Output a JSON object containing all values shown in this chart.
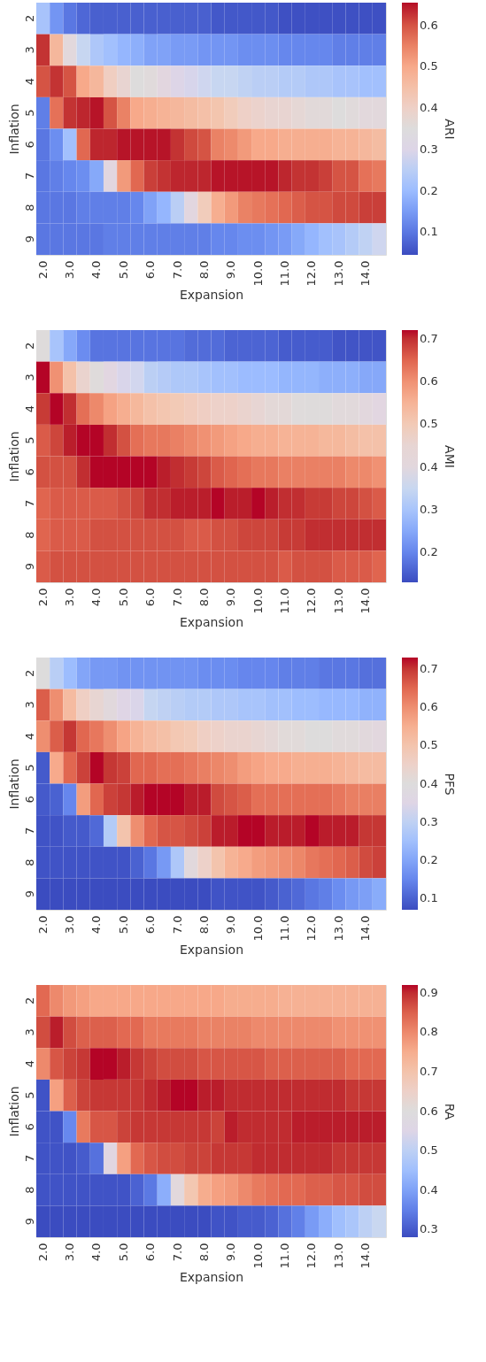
{
  "chart_data": [
    {
      "type": "heatmap",
      "xlabel": "Expansion",
      "ylabel": "Inflation",
      "clabel": "ARI",
      "categories": [
        "2.0",
        null,
        "3.0",
        null,
        "4.0",
        null,
        "5.0",
        null,
        "6.0",
        null,
        "7.0",
        null,
        "8.0",
        null,
        "9.0",
        null,
        "10.0",
        null,
        "11.0",
        null,
        "12.0",
        null,
        "13.0",
        null,
        "14.0",
        null
      ],
      "y_categories": [
        "2",
        "3",
        "4",
        "5",
        "6",
        "7",
        "8",
        "9"
      ],
      "clim": [
        0.045,
        0.655
      ],
      "cticks": [
        0.1,
        0.2,
        0.3,
        0.4,
        0.5,
        0.6
      ],
      "cells": [
        [
          0.22,
          0.14,
          0.1,
          0.08,
          0.07,
          0.07,
          0.07,
          0.07,
          0.07,
          0.07,
          0.07,
          0.07,
          0.07,
          0.06,
          0.06,
          0.06,
          0.06,
          0.06,
          0.05,
          0.05,
          0.05,
          0.05,
          0.05,
          0.05,
          0.05,
          0.05
        ],
        [
          0.63,
          0.47,
          0.33,
          0.27,
          0.23,
          0.21,
          0.19,
          0.18,
          0.16,
          0.16,
          0.15,
          0.15,
          0.14,
          0.14,
          0.14,
          0.13,
          0.13,
          0.13,
          0.12,
          0.12,
          0.12,
          0.12,
          0.11,
          0.11,
          0.11,
          0.11
        ],
        [
          0.6,
          0.63,
          0.6,
          0.5,
          0.47,
          0.41,
          0.38,
          0.35,
          0.34,
          0.32,
          0.3,
          0.29,
          0.28,
          0.27,
          0.27,
          0.26,
          0.25,
          0.25,
          0.24,
          0.24,
          0.23,
          0.23,
          0.22,
          0.22,
          0.21,
          0.21
        ],
        [
          0.11,
          0.57,
          0.63,
          0.64,
          0.65,
          0.6,
          0.55,
          0.5,
          0.49,
          0.48,
          0.47,
          0.46,
          0.45,
          0.44,
          0.42,
          0.4,
          0.39,
          0.38,
          0.38,
          0.37,
          0.36,
          0.36,
          0.35,
          0.34,
          0.33,
          0.33
        ],
        [
          0.1,
          0.13,
          0.21,
          0.58,
          0.64,
          0.64,
          0.65,
          0.65,
          0.65,
          0.65,
          0.63,
          0.61,
          0.6,
          0.55,
          0.54,
          0.52,
          0.5,
          0.5,
          0.49,
          0.49,
          0.49,
          0.49,
          0.48,
          0.48,
          0.47,
          0.46
        ],
        [
          0.1,
          0.11,
          0.12,
          0.13,
          0.17,
          0.32,
          0.52,
          0.58,
          0.62,
          0.63,
          0.64,
          0.64,
          0.64,
          0.65,
          0.65,
          0.65,
          0.65,
          0.65,
          0.64,
          0.63,
          0.63,
          0.62,
          0.6,
          0.6,
          0.57,
          0.56
        ],
        [
          0.1,
          0.1,
          0.1,
          0.11,
          0.11,
          0.11,
          0.11,
          0.12,
          0.16,
          0.19,
          0.25,
          0.32,
          0.42,
          0.49,
          0.52,
          0.55,
          0.56,
          0.57,
          0.58,
          0.59,
          0.6,
          0.6,
          0.61,
          0.61,
          0.62,
          0.62
        ],
        [
          0.1,
          0.1,
          0.1,
          0.1,
          0.1,
          0.11,
          0.11,
          0.11,
          0.11,
          0.11,
          0.11,
          0.11,
          0.11,
          0.12,
          0.12,
          0.13,
          0.13,
          0.14,
          0.15,
          0.17,
          0.19,
          0.21,
          0.22,
          0.24,
          0.26,
          0.28
        ]
      ]
    },
    {
      "type": "heatmap",
      "xlabel": "Expansion",
      "ylabel": "Inflation",
      "clabel": "AMI",
      "categories": [
        "2.0",
        null,
        "3.0",
        null,
        "4.0",
        null,
        "5.0",
        null,
        "6.0",
        null,
        "7.0",
        null,
        "8.0",
        null,
        "9.0",
        null,
        "10.0",
        null,
        "11.0",
        null,
        "12.0",
        null,
        "13.0",
        null,
        "14.0",
        null
      ],
      "y_categories": [
        "2",
        "3",
        "4",
        "5",
        "6",
        "7",
        "8",
        "9"
      ],
      "clim": [
        0.13,
        0.72
      ],
      "cticks": [
        0.2,
        0.3,
        0.4,
        0.5,
        0.6,
        0.7
      ],
      "cells": [
        [
          0.42,
          0.3,
          0.25,
          0.21,
          0.18,
          0.18,
          0.18,
          0.18,
          0.18,
          0.18,
          0.18,
          0.17,
          0.17,
          0.17,
          0.16,
          0.16,
          0.16,
          0.16,
          0.15,
          0.15,
          0.15,
          0.15,
          0.14,
          0.14,
          0.14,
          0.14
        ],
        [
          0.72,
          0.6,
          0.52,
          0.46,
          0.43,
          0.39,
          0.37,
          0.36,
          0.33,
          0.32,
          0.31,
          0.31,
          0.3,
          0.29,
          0.29,
          0.28,
          0.28,
          0.28,
          0.27,
          0.27,
          0.27,
          0.26,
          0.26,
          0.26,
          0.25,
          0.25
        ],
        [
          0.69,
          0.72,
          0.7,
          0.64,
          0.61,
          0.58,
          0.56,
          0.54,
          0.52,
          0.51,
          0.5,
          0.49,
          0.48,
          0.47,
          0.47,
          0.46,
          0.45,
          0.44,
          0.44,
          0.43,
          0.42,
          0.42,
          0.41,
          0.41,
          0.4,
          0.39
        ],
        [
          0.66,
          0.68,
          0.71,
          0.72,
          0.72,
          0.7,
          0.67,
          0.64,
          0.63,
          0.63,
          0.62,
          0.61,
          0.6,
          0.59,
          0.58,
          0.57,
          0.56,
          0.56,
          0.55,
          0.55,
          0.55,
          0.54,
          0.54,
          0.53,
          0.52,
          0.52
        ],
        [
          0.67,
          0.67,
          0.67,
          0.7,
          0.72,
          0.72,
          0.72,
          0.72,
          0.72,
          0.71,
          0.7,
          0.69,
          0.68,
          0.66,
          0.65,
          0.64,
          0.63,
          0.63,
          0.62,
          0.62,
          0.62,
          0.62,
          0.62,
          0.61,
          0.61,
          0.6
        ],
        [
          0.65,
          0.66,
          0.66,
          0.66,
          0.66,
          0.66,
          0.67,
          0.68,
          0.7,
          0.7,
          0.71,
          0.71,
          0.71,
          0.72,
          0.71,
          0.71,
          0.72,
          0.71,
          0.7,
          0.7,
          0.69,
          0.69,
          0.68,
          0.68,
          0.67,
          0.66
        ],
        [
          0.65,
          0.66,
          0.66,
          0.66,
          0.67,
          0.67,
          0.67,
          0.67,
          0.67,
          0.67,
          0.67,
          0.66,
          0.66,
          0.67,
          0.67,
          0.68,
          0.68,
          0.68,
          0.69,
          0.69,
          0.7,
          0.7,
          0.7,
          0.7,
          0.7,
          0.7
        ],
        [
          0.66,
          0.67,
          0.67,
          0.67,
          0.67,
          0.67,
          0.67,
          0.67,
          0.67,
          0.67,
          0.67,
          0.67,
          0.67,
          0.67,
          0.67,
          0.67,
          0.67,
          0.67,
          0.66,
          0.67,
          0.67,
          0.67,
          0.66,
          0.66,
          0.66,
          0.65
        ]
      ]
    },
    {
      "type": "heatmap",
      "xlabel": "Expansion",
      "ylabel": "Inflation",
      "clabel": "PFS",
      "categories": [
        "2.0",
        null,
        "3.0",
        null,
        "4.0",
        null,
        "5.0",
        null,
        "6.0",
        null,
        "7.0",
        null,
        "8.0",
        null,
        "9.0",
        null,
        "10.0",
        null,
        "11.0",
        null,
        "12.0",
        null,
        "13.0",
        null,
        "14.0",
        null
      ],
      "y_categories": [
        "2",
        "3",
        "4",
        "5",
        "6",
        "7",
        "8",
        "9"
      ],
      "clim": [
        0.07,
        0.73
      ],
      "cticks": [
        0.1,
        0.2,
        0.3,
        0.4,
        0.5,
        0.6,
        0.7
      ],
      "cells": [
        [
          0.4,
          0.29,
          0.24,
          0.2,
          0.18,
          0.18,
          0.17,
          0.17,
          0.17,
          0.17,
          0.17,
          0.17,
          0.16,
          0.16,
          0.16,
          0.15,
          0.15,
          0.15,
          0.14,
          0.14,
          0.14,
          0.13,
          0.13,
          0.13,
          0.12,
          0.12
        ],
        [
          0.66,
          0.6,
          0.52,
          0.46,
          0.43,
          0.38,
          0.35,
          0.34,
          0.31,
          0.3,
          0.29,
          0.28,
          0.28,
          0.27,
          0.27,
          0.26,
          0.26,
          0.25,
          0.25,
          0.24,
          0.24,
          0.23,
          0.23,
          0.23,
          0.22,
          0.22
        ],
        [
          0.6,
          0.66,
          0.7,
          0.65,
          0.63,
          0.6,
          0.57,
          0.54,
          0.52,
          0.51,
          0.49,
          0.48,
          0.46,
          0.45,
          0.44,
          0.44,
          0.43,
          0.42,
          0.41,
          0.41,
          0.4,
          0.4,
          0.39,
          0.39,
          0.38,
          0.37
        ],
        [
          0.09,
          0.56,
          0.65,
          0.69,
          0.73,
          0.7,
          0.69,
          0.65,
          0.65,
          0.64,
          0.64,
          0.63,
          0.62,
          0.61,
          0.6,
          0.58,
          0.57,
          0.56,
          0.56,
          0.55,
          0.55,
          0.55,
          0.54,
          0.53,
          0.52,
          0.52
        ],
        [
          0.09,
          0.1,
          0.15,
          0.58,
          0.65,
          0.69,
          0.7,
          0.72,
          0.73,
          0.73,
          0.73,
          0.72,
          0.72,
          0.68,
          0.67,
          0.66,
          0.64,
          0.64,
          0.64,
          0.64,
          0.64,
          0.64,
          0.63,
          0.62,
          0.62,
          0.62
        ],
        [
          0.08,
          0.08,
          0.09,
          0.09,
          0.11,
          0.28,
          0.5,
          0.6,
          0.65,
          0.67,
          0.67,
          0.68,
          0.69,
          0.72,
          0.72,
          0.73,
          0.73,
          0.72,
          0.72,
          0.72,
          0.73,
          0.72,
          0.72,
          0.72,
          0.7,
          0.7
        ],
        [
          0.08,
          0.08,
          0.08,
          0.08,
          0.08,
          0.08,
          0.08,
          0.1,
          0.13,
          0.18,
          0.27,
          0.38,
          0.45,
          0.5,
          0.54,
          0.56,
          0.58,
          0.59,
          0.6,
          0.61,
          0.63,
          0.64,
          0.65,
          0.66,
          0.68,
          0.69
        ],
        [
          0.07,
          0.07,
          0.07,
          0.07,
          0.07,
          0.07,
          0.07,
          0.07,
          0.07,
          0.07,
          0.07,
          0.07,
          0.07,
          0.08,
          0.08,
          0.08,
          0.08,
          0.09,
          0.1,
          0.11,
          0.13,
          0.14,
          0.16,
          0.18,
          0.19,
          0.21
        ]
      ]
    },
    {
      "type": "heatmap",
      "xlabel": "Expansion",
      "ylabel": "Inflation",
      "clabel": "RA",
      "categories": [
        "2.0",
        null,
        "3.0",
        null,
        "4.0",
        null,
        "5.0",
        null,
        "6.0",
        null,
        "7.0",
        null,
        "8.0",
        null,
        "9.0",
        null,
        "10.0",
        null,
        "11.0",
        null,
        "12.0",
        null,
        "13.0",
        null,
        "14.0",
        null
      ],
      "y_categories": [
        "2",
        "3",
        "4",
        "5",
        "6",
        "7",
        "8",
        "9"
      ],
      "clim": [
        0.28,
        0.92
      ],
      "cticks": [
        0.3,
        0.4,
        0.5,
        0.6,
        0.7,
        0.8,
        0.9
      ],
      "cells": [
        [
          0.84,
          0.8,
          0.78,
          0.77,
          0.76,
          0.76,
          0.76,
          0.76,
          0.76,
          0.76,
          0.76,
          0.76,
          0.76,
          0.76,
          0.75,
          0.75,
          0.75,
          0.75,
          0.74,
          0.74,
          0.74,
          0.74,
          0.74,
          0.74,
          0.74,
          0.74
        ],
        [
          0.87,
          0.91,
          0.87,
          0.85,
          0.85,
          0.85,
          0.84,
          0.84,
          0.82,
          0.82,
          0.82,
          0.82,
          0.81,
          0.81,
          0.81,
          0.81,
          0.8,
          0.8,
          0.8,
          0.8,
          0.8,
          0.8,
          0.79,
          0.79,
          0.79,
          0.79
        ],
        [
          0.8,
          0.86,
          0.88,
          0.89,
          0.92,
          0.92,
          0.91,
          0.89,
          0.88,
          0.87,
          0.87,
          0.87,
          0.86,
          0.86,
          0.86,
          0.86,
          0.86,
          0.85,
          0.85,
          0.85,
          0.85,
          0.85,
          0.85,
          0.84,
          0.84,
          0.84
        ],
        [
          0.29,
          0.77,
          0.85,
          0.88,
          0.89,
          0.89,
          0.89,
          0.89,
          0.9,
          0.91,
          0.92,
          0.92,
          0.91,
          0.91,
          0.9,
          0.9,
          0.9,
          0.9,
          0.9,
          0.9,
          0.9,
          0.9,
          0.9,
          0.89,
          0.89,
          0.89
        ],
        [
          0.29,
          0.29,
          0.36,
          0.82,
          0.86,
          0.86,
          0.88,
          0.89,
          0.89,
          0.89,
          0.89,
          0.89,
          0.89,
          0.88,
          0.91,
          0.9,
          0.9,
          0.9,
          0.9,
          0.91,
          0.91,
          0.91,
          0.91,
          0.91,
          0.91,
          0.91
        ],
        [
          0.29,
          0.29,
          0.29,
          0.3,
          0.33,
          0.56,
          0.77,
          0.84,
          0.86,
          0.87,
          0.87,
          0.88,
          0.88,
          0.89,
          0.89,
          0.89,
          0.9,
          0.9,
          0.9,
          0.9,
          0.9,
          0.9,
          0.89,
          0.89,
          0.89,
          0.89
        ],
        [
          0.29,
          0.29,
          0.29,
          0.29,
          0.29,
          0.29,
          0.29,
          0.31,
          0.34,
          0.42,
          0.58,
          0.69,
          0.75,
          0.77,
          0.78,
          0.8,
          0.82,
          0.83,
          0.84,
          0.84,
          0.85,
          0.85,
          0.86,
          0.86,
          0.87,
          0.87
        ],
        [
          0.28,
          0.28,
          0.28,
          0.28,
          0.28,
          0.28,
          0.28,
          0.28,
          0.28,
          0.28,
          0.28,
          0.28,
          0.28,
          0.29,
          0.29,
          0.3,
          0.3,
          0.31,
          0.33,
          0.35,
          0.39,
          0.42,
          0.45,
          0.47,
          0.5,
          0.52
        ]
      ]
    }
  ]
}
